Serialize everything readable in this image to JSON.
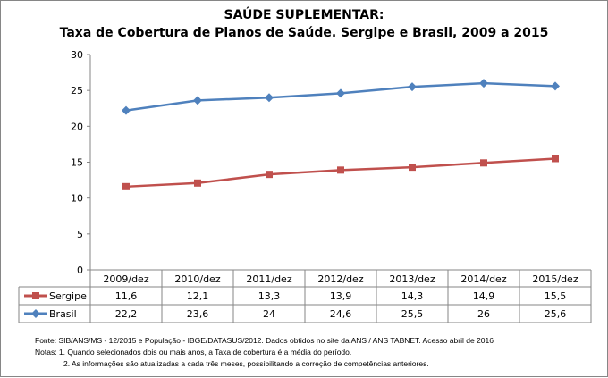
{
  "chart_data": {
    "type": "line",
    "title": "SAÚDE SUPLEMENTAR:",
    "subtitle": "Taxa de Cobertura de Planos de Saúde. Sergipe e Brasil, 2009 a 2015",
    "categories": [
      "2009/dez",
      "2010/dez",
      "2011/dez",
      "2012/dez",
      "2013/dez",
      "2014/dez",
      "2015/dez"
    ],
    "series": [
      {
        "name": "Sergipe",
        "values": [
          11.6,
          12.1,
          13.3,
          13.9,
          14.3,
          14.9,
          15.5
        ],
        "labels": [
          "11,6",
          "12,1",
          "13,3",
          "13,9",
          "14,3",
          "14,9",
          "15,5"
        ],
        "color": "#c0504d",
        "marker": "square"
      },
      {
        "name": "Brasil",
        "values": [
          22.2,
          23.6,
          24,
          24.6,
          25.5,
          26,
          25.6
        ],
        "labels": [
          "22,2",
          "23,6",
          "24",
          "24,6",
          "25,5",
          "26",
          "25,6"
        ],
        "color": "#4f81bd",
        "marker": "diamond"
      }
    ],
    "ylim": [
      0,
      30
    ],
    "yticks": [
      0,
      5,
      10,
      15,
      20,
      25,
      30
    ],
    "grid": false,
    "legend": "data-table"
  },
  "notes": {
    "source": "Fonte: SIB/ANS/MS - 12/2015 e População - IBGE/DATASUS/2012. Dados obtidos no site da ANS / ANS TABNET. Acesso abril de 2016",
    "note1": "Notas: 1. Quando selecionados dois ou mais anos, a Taxa de cobertura é a média do período.",
    "note2": "2. As informações são atualizadas a cada três meses, possibilitando a correção de competências anteriores."
  }
}
